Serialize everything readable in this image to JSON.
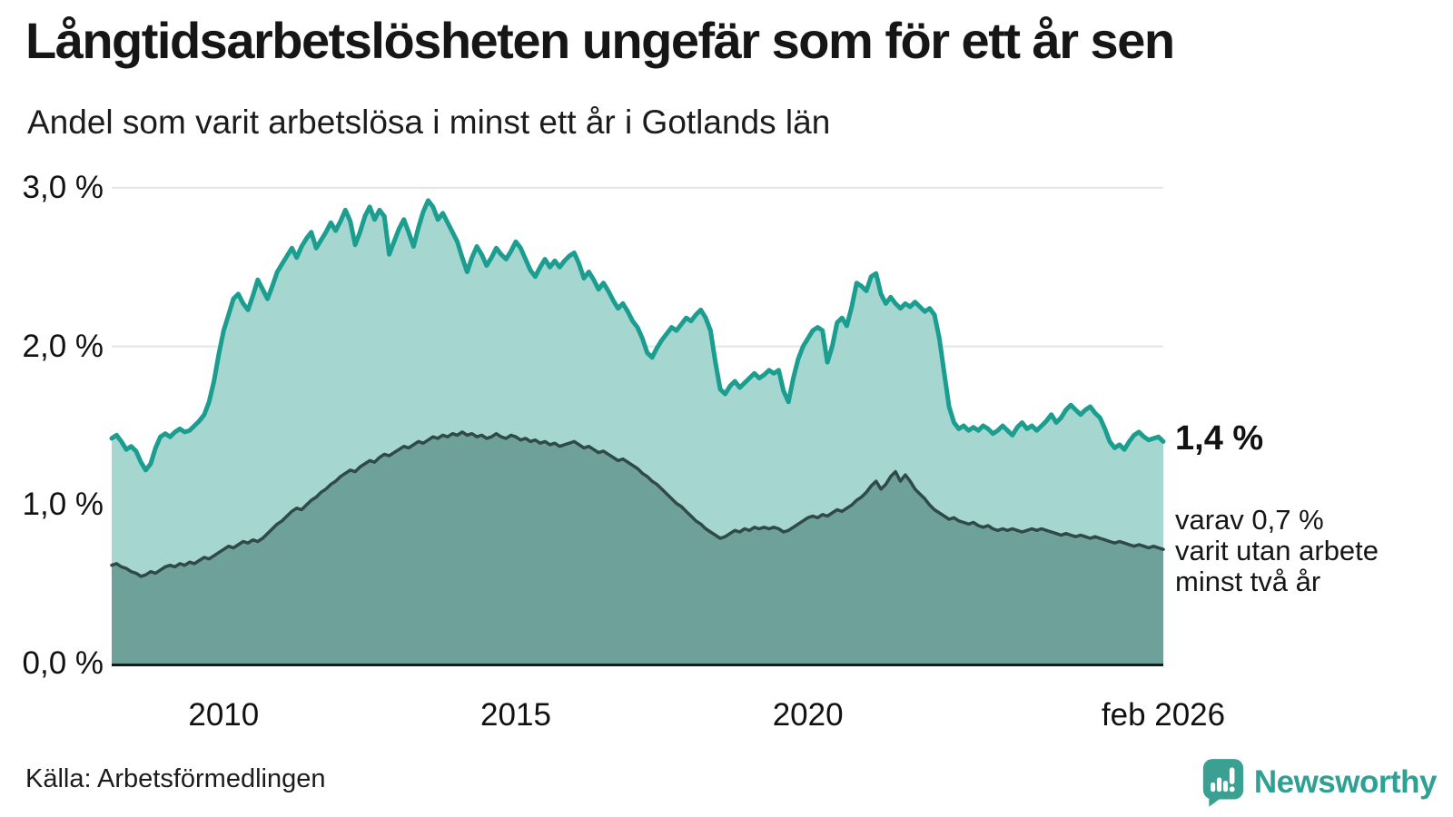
{
  "header": {
    "title": "Långtidsarbetslösheten ungefär som för ett år sen",
    "subtitle": "Andel som varit arbetslösa i minst ett år i Gotlands län"
  },
  "chart_data": {
    "type": "area",
    "unit": "%",
    "x_start": 2008.083,
    "x_end": 2026.083,
    "x_step_months": 1,
    "ylim": [
      0,
      3.1
    ],
    "grid": "horizontal",
    "y_ticks": [
      {
        "label": "3,0 %",
        "value": 3.0
      },
      {
        "label": "2,0 %",
        "value": 2.0
      },
      {
        "label": "1,0 %",
        "value": 1.0
      },
      {
        "label": "0,0 %",
        "value": 0.0
      }
    ],
    "x_ticks": [
      {
        "label": "2010",
        "year": 2010
      },
      {
        "label": "2015",
        "year": 2015
      },
      {
        "label": "2020",
        "year": 2020
      },
      {
        "label": "feb 2026",
        "year": 2026.083
      }
    ],
    "series": [
      {
        "name": "Andel som varit arbetslösa minst ett år",
        "fill": "#a5d6cf",
        "stroke": "#1b9e90",
        "stroke_width": 5,
        "latest_value": 1.4,
        "values": [
          1.42,
          1.44,
          1.4,
          1.35,
          1.37,
          1.34,
          1.27,
          1.22,
          1.26,
          1.36,
          1.43,
          1.45,
          1.43,
          1.46,
          1.48,
          1.46,
          1.47,
          1.5,
          1.53,
          1.57,
          1.65,
          1.78,
          1.95,
          2.1,
          2.2,
          2.3,
          2.33,
          2.27,
          2.23,
          2.32,
          2.42,
          2.36,
          2.3,
          2.38,
          2.47,
          2.52,
          2.57,
          2.62,
          2.56,
          2.63,
          2.68,
          2.72,
          2.62,
          2.67,
          2.72,
          2.78,
          2.73,
          2.79,
          2.86,
          2.79,
          2.64,
          2.72,
          2.82,
          2.88,
          2.8,
          2.86,
          2.82,
          2.58,
          2.66,
          2.74,
          2.8,
          2.72,
          2.63,
          2.75,
          2.85,
          2.92,
          2.88,
          2.8,
          2.84,
          2.78,
          2.72,
          2.66,
          2.56,
          2.47,
          2.56,
          2.63,
          2.58,
          2.51,
          2.56,
          2.62,
          2.58,
          2.55,
          2.6,
          2.66,
          2.62,
          2.55,
          2.48,
          2.44,
          2.5,
          2.55,
          2.5,
          2.54,
          2.5,
          2.54,
          2.57,
          2.59,
          2.52,
          2.43,
          2.47,
          2.42,
          2.36,
          2.4,
          2.35,
          2.29,
          2.24,
          2.27,
          2.22,
          2.16,
          2.12,
          2.05,
          1.96,
          1.93,
          1.99,
          2.04,
          2.08,
          2.12,
          2.1,
          2.14,
          2.18,
          2.16,
          2.2,
          2.23,
          2.18,
          2.1,
          1.9,
          1.73,
          1.7,
          1.75,
          1.78,
          1.74,
          1.77,
          1.8,
          1.83,
          1.8,
          1.82,
          1.85,
          1.83,
          1.85,
          1.72,
          1.65,
          1.8,
          1.92,
          2.0,
          2.05,
          2.1,
          2.12,
          2.1,
          1.9,
          2.0,
          2.15,
          2.18,
          2.13,
          2.25,
          2.4,
          2.38,
          2.35,
          2.44,
          2.46,
          2.33,
          2.27,
          2.31,
          2.27,
          2.24,
          2.27,
          2.25,
          2.28,
          2.25,
          2.22,
          2.24,
          2.2,
          2.05,
          1.83,
          1.62,
          1.52,
          1.48,
          1.5,
          1.47,
          1.49,
          1.47,
          1.5,
          1.48,
          1.45,
          1.47,
          1.5,
          1.47,
          1.44,
          1.49,
          1.52,
          1.48,
          1.5,
          1.47,
          1.5,
          1.53,
          1.57,
          1.52,
          1.55,
          1.6,
          1.63,
          1.6,
          1.57,
          1.6,
          1.62,
          1.58,
          1.55,
          1.48,
          1.4,
          1.36,
          1.38,
          1.35,
          1.4,
          1.44,
          1.46,
          1.43,
          1.41,
          1.42,
          1.43,
          1.4
        ]
      },
      {
        "name": "varav arbetslösa minst två år",
        "fill": "#6fa19b",
        "stroke": "#2f4a47",
        "stroke_width": 3.5,
        "latest_value": 0.7,
        "values": [
          0.62,
          0.63,
          0.61,
          0.6,
          0.58,
          0.57,
          0.55,
          0.56,
          0.58,
          0.57,
          0.59,
          0.61,
          0.62,
          0.61,
          0.63,
          0.62,
          0.64,
          0.63,
          0.65,
          0.67,
          0.66,
          0.68,
          0.7,
          0.72,
          0.74,
          0.73,
          0.75,
          0.77,
          0.76,
          0.78,
          0.77,
          0.79,
          0.82,
          0.85,
          0.88,
          0.9,
          0.93,
          0.96,
          0.98,
          0.97,
          1.0,
          1.03,
          1.05,
          1.08,
          1.1,
          1.13,
          1.15,
          1.18,
          1.2,
          1.22,
          1.21,
          1.24,
          1.26,
          1.28,
          1.27,
          1.3,
          1.32,
          1.31,
          1.33,
          1.35,
          1.37,
          1.36,
          1.38,
          1.4,
          1.39,
          1.41,
          1.43,
          1.42,
          1.44,
          1.43,
          1.45,
          1.44,
          1.46,
          1.44,
          1.45,
          1.43,
          1.44,
          1.42,
          1.43,
          1.45,
          1.43,
          1.42,
          1.44,
          1.43,
          1.41,
          1.42,
          1.4,
          1.41,
          1.39,
          1.4,
          1.38,
          1.39,
          1.37,
          1.38,
          1.39,
          1.4,
          1.38,
          1.36,
          1.37,
          1.35,
          1.33,
          1.34,
          1.32,
          1.3,
          1.28,
          1.29,
          1.27,
          1.25,
          1.23,
          1.2,
          1.18,
          1.15,
          1.13,
          1.1,
          1.07,
          1.04,
          1.01,
          0.99,
          0.96,
          0.93,
          0.9,
          0.88,
          0.85,
          0.83,
          0.81,
          0.79,
          0.8,
          0.82,
          0.84,
          0.83,
          0.85,
          0.84,
          0.86,
          0.85,
          0.86,
          0.85,
          0.86,
          0.85,
          0.83,
          0.84,
          0.86,
          0.88,
          0.9,
          0.92,
          0.93,
          0.92,
          0.94,
          0.93,
          0.95,
          0.97,
          0.96,
          0.98,
          1.0,
          1.03,
          1.05,
          1.08,
          1.12,
          1.15,
          1.1,
          1.13,
          1.18,
          1.21,
          1.15,
          1.19,
          1.15,
          1.1,
          1.07,
          1.04,
          1.0,
          0.97,
          0.95,
          0.93,
          0.91,
          0.92,
          0.9,
          0.89,
          0.88,
          0.89,
          0.87,
          0.86,
          0.87,
          0.85,
          0.84,
          0.85,
          0.84,
          0.85,
          0.84,
          0.83,
          0.84,
          0.85,
          0.84,
          0.85,
          0.84,
          0.83,
          0.82,
          0.81,
          0.82,
          0.81,
          0.8,
          0.81,
          0.8,
          0.79,
          0.8,
          0.79,
          0.78,
          0.77,
          0.76,
          0.77,
          0.76,
          0.75,
          0.74,
          0.75,
          0.74,
          0.73,
          0.74,
          0.73,
          0.72
        ]
      }
    ]
  },
  "annotations": {
    "latest_value": "1,4 %",
    "note_line1": "varav 0,7 %",
    "note_line2": "varit utan arbete",
    "note_line3": "minst två år"
  },
  "footer": {
    "source": "Källa: Arbetsförmedlingen",
    "brand": "Newsworthy"
  },
  "colors": {
    "accent_teal": "#1b9e90",
    "area_light": "#a5d6cf",
    "area_dark": "#6fa19b",
    "dark_line": "#2f4a47",
    "grid": "#e4e4e7",
    "baseline": "#17191b",
    "text": "#1a1a1a",
    "brand_teal": "#2fa094"
  }
}
